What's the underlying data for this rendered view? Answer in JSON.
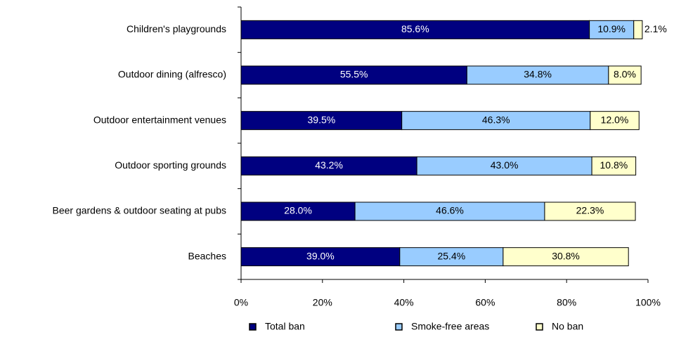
{
  "chart_data": {
    "type": "stacked_bar_horizontal",
    "categories": [
      "Children's playgrounds",
      "Outdoor dining (alfresco)",
      "Outdoor entertainment venues",
      "Outdoor sporting grounds",
      "Beer gardens & outdoor seating at pubs",
      "Beaches"
    ],
    "series": [
      {
        "name": "Total ban",
        "color": "#000080",
        "values": [
          85.6,
          55.5,
          39.5,
          43.2,
          28.0,
          39.0
        ],
        "value_labels": [
          "85.6%",
          "55.5%",
          "39.5%",
          "43.2%",
          "28.0%",
          "39.0%"
        ]
      },
      {
        "name": "Smoke-free areas",
        "color": "#99ccff",
        "values": [
          10.9,
          34.8,
          46.3,
          43.0,
          46.6,
          25.4
        ],
        "value_labels": [
          "10.9%",
          "34.8%",
          "46.3%",
          "43.0%",
          "46.6%",
          "25.4%"
        ]
      },
      {
        "name": "No ban",
        "color": "#ffffcc",
        "values": [
          2.1,
          8.0,
          12.0,
          10.8,
          22.3,
          30.8
        ],
        "value_labels": [
          "2.1%",
          "8.0%",
          "12.0%",
          "10.8%",
          "22.3%",
          "30.8%"
        ]
      }
    ],
    "xlim": [
      0,
      100
    ],
    "xticks": [
      {
        "value": 0,
        "label": "0%"
      },
      {
        "value": 20,
        "label": "20%"
      },
      {
        "value": 40,
        "label": "40%"
      },
      {
        "value": 60,
        "label": "60%"
      },
      {
        "value": 80,
        "label": "80%"
      },
      {
        "value": 100,
        "label": "100%"
      }
    ],
    "legend": "bottom"
  }
}
